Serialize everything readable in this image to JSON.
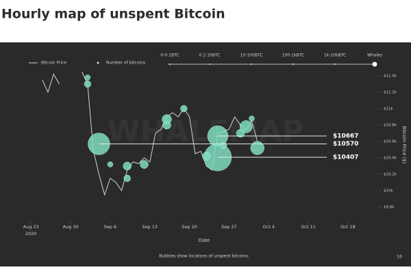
{
  "title": "Hourly map of unspent Bitcoin",
  "page": "16",
  "chart_data": {
    "type": "bubble",
    "watermark": "WHALEMAP",
    "filters": [
      "0-0.1BTC",
      "0.1-10BTC",
      "10-100BTC",
      "100-1kBTC",
      "1k-10kBTC",
      "Whales"
    ],
    "x_label": "Date",
    "y_label": "Bitcoin Price ($)",
    "note": "Bubbles show locations of unspent bitcoins.",
    "grid": false,
    "xlim": [
      "2020-08-22",
      "2020-10-22"
    ],
    "xticks": [
      {
        "value": "2020-08-23",
        "label": "Aug 23"
      },
      {
        "value": "2020-08-30",
        "label": "Aug 30"
      },
      {
        "value": "2020-09-06",
        "label": "Sep 6"
      },
      {
        "value": "2020-09-13",
        "label": "Sep 13"
      },
      {
        "value": "2020-09-20",
        "label": "Sep 20"
      },
      {
        "value": "2020-09-27",
        "label": "Sep 27"
      },
      {
        "value": "2020-10-04",
        "label": "Oct 4"
      },
      {
        "value": "2020-10-11",
        "label": "Oct 11"
      },
      {
        "value": "2020-10-18",
        "label": "Oct 18"
      }
    ],
    "x_year": "2020",
    "ylim": [
      9650,
      11500
    ],
    "yticks": [
      {
        "value": 11400,
        "label": "$11.4k"
      },
      {
        "value": 11200,
        "label": "$11.2k"
      },
      {
        "value": 11000,
        "label": "$11k"
      },
      {
        "value": 10800,
        "label": "$10.8k"
      },
      {
        "value": 10600,
        "label": "$10.6k"
      },
      {
        "value": 10400,
        "label": "$10.4k"
      },
      {
        "value": 10200,
        "label": "$10.2k"
      },
      {
        "value": 10000,
        "label": "$10k"
      },
      {
        "value": 9800,
        "label": "$9.8k"
      }
    ],
    "series": [
      {
        "name": "Bitcoin Price",
        "type": "line",
        "color": "#d6d6d6",
        "x": [
          "2020-08-25",
          "2020-08-26",
          "2020-08-27",
          "2020-08-28",
          "2020-08-30",
          "2020-09-01",
          "2020-09-02",
          "2020-09-03",
          "2020-09-04",
          "2020-09-05",
          "2020-09-06",
          "2020-09-07",
          "2020-09-08",
          "2020-09-09",
          "2020-09-10",
          "2020-09-11",
          "2020-09-12",
          "2020-09-13",
          "2020-09-14",
          "2020-09-15",
          "2020-09-16",
          "2020-09-17",
          "2020-09-18",
          "2020-09-19",
          "2020-09-20",
          "2020-09-21",
          "2020-09-22",
          "2020-09-23",
          "2020-09-24",
          "2020-09-25",
          "2020-09-26",
          "2020-09-27",
          "2020-09-28",
          "2020-09-29",
          "2020-09-30",
          "2020-10-01",
          "2020-10-02"
        ],
        "values": [
          11350,
          11200,
          11420,
          11300,
          null,
          11450,
          11300,
          10500,
          10200,
          9950,
          10150,
          10100,
          10000,
          10250,
          10350,
          10330,
          10400,
          10350,
          10700,
          10750,
          10900,
          10950,
          10900,
          11000,
          10900,
          10450,
          10480,
          10300,
          10250,
          10700,
          10720,
          10750,
          10900,
          10800,
          10750,
          10850,
          10600
        ]
      },
      {
        "name": "Number of bitcoins",
        "type": "bubble",
        "color": "#7fdcc0",
        "x": [
          "2020-09-04",
          "2020-09-25",
          "2020-09-25",
          "2020-10-02",
          "2020-09-02",
          "2020-09-02",
          "2020-09-16",
          "2020-09-16",
          "2020-09-19",
          "2020-09-30",
          "2020-09-29",
          "2020-10-01",
          "2020-09-12",
          "2020-09-09",
          "2020-09-09",
          "2020-09-06",
          "2020-09-23",
          "2020-09-26"
        ],
        "values": [
          10570,
          10667,
          10407,
          10520,
          11300,
          11380,
          10870,
          10800,
          11000,
          10780,
          10700,
          10880,
          10320,
          10300,
          10150,
          10320,
          10420,
          10550
        ],
        "sizes": [
          2600,
          2300,
          4100,
          1000,
          250,
          160,
          500,
          370,
          250,
          830,
          370,
          160,
          370,
          370,
          250,
          160,
          370,
          250
        ]
      }
    ],
    "levels": [
      {
        "value": 10667,
        "label": "$10667",
        "from": "2020-09-25"
      },
      {
        "value": 10570,
        "label": "$10570",
        "from": "2020-09-04"
      },
      {
        "value": 10407,
        "label": "$10407",
        "from": "2020-09-25"
      }
    ]
  }
}
